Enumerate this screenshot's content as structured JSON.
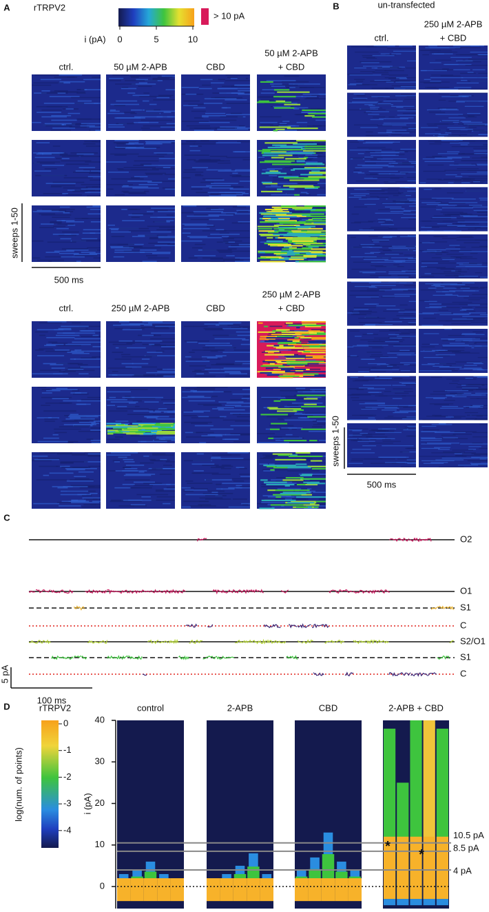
{
  "panel_a": {
    "label": "A",
    "title": "rTRPV2",
    "colorbar": {
      "label": "i (pA)",
      "lim": [
        0,
        10
      ],
      "ticks": [
        0,
        5,
        10
      ],
      "over_label": "> 10 pA"
    },
    "group1": {
      "headers": [
        [
          "ctrl."
        ],
        [
          "50 µM 2-APB"
        ],
        [
          "CBD"
        ],
        [
          "50 µM 2-APB",
          "+ CBD"
        ]
      ]
    },
    "group2": {
      "headers": [
        [
          "ctrl."
        ],
        [
          "250 µM 2-APB"
        ],
        [
          "CBD"
        ],
        [
          "250 µM 2-APB",
          "+ CBD"
        ]
      ]
    },
    "scale_bar": "500 ms",
    "sweeps_label": "sweeps 1-50"
  },
  "panel_b": {
    "label": "B",
    "title": "un-transfected",
    "headers": [
      [
        "ctrl."
      ],
      [
        "250 µM 2-APB",
        "+ CBD"
      ]
    ],
    "scale_bar": "500 ms",
    "sweeps_label": "sweeps 1-50"
  },
  "panel_c": {
    "label": "C",
    "levels_top": [
      "O2",
      "O1",
      "S1",
      "C"
    ],
    "levels_bottom": [
      "S2/O1",
      "S1",
      "C"
    ],
    "scale_y": "5 pA",
    "scale_x": "100 ms"
  },
  "panel_d": {
    "label": "D",
    "title": "rTRPV2",
    "colorbar": {
      "label": "log(num. of points)",
      "lim": [
        -4.65,
        0.13
      ],
      "ticks": [
        0,
        -1,
        -2,
        -3,
        -4
      ]
    },
    "ylabel": "i (pA)",
    "ylim": [
      -5.3,
      40
    ],
    "yticks": [
      0,
      10,
      20,
      30,
      40
    ],
    "panels": [
      "control",
      "2-APB",
      "CBD",
      "2-APB + CBD"
    ],
    "levels": [
      {
        "value": 10.5,
        "label": "10.5 pA"
      },
      {
        "value": 8.5,
        "label": "8.5 pA"
      },
      {
        "value": 4,
        "label": "4 pA"
      }
    ],
    "marker": "*"
  }
}
